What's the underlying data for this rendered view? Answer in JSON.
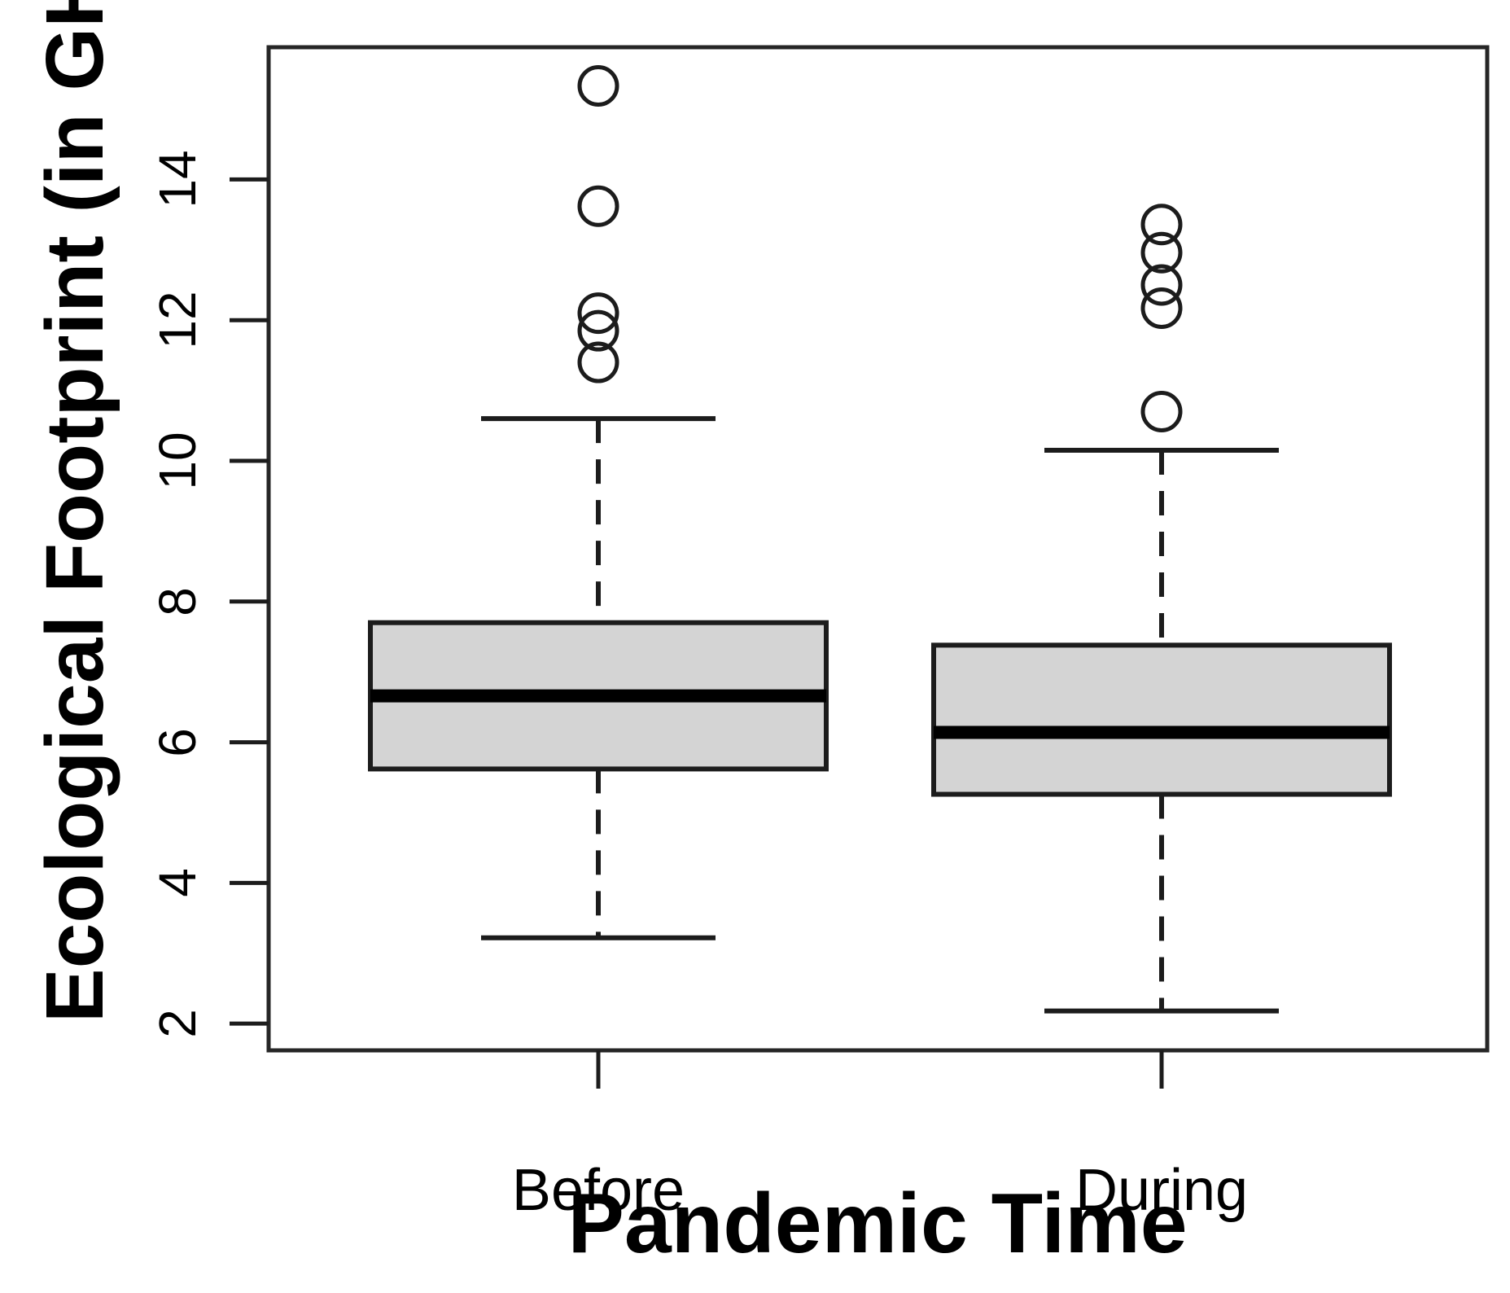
{
  "figure": {
    "background": "#ffffff"
  },
  "chart_data": {
    "type": "boxplot",
    "title": "",
    "xlabel": "Pandemic Time",
    "ylabel": "Ecological Footprint (in GHA)",
    "categories": [
      "Before",
      "During"
    ],
    "ylim": [
      1.62,
      15.88
    ],
    "yticks": [
      2,
      4,
      6,
      8,
      10,
      12,
      14
    ],
    "ytick_labels": [
      "2",
      "4",
      "6",
      "8",
      "10",
      "12",
      "14"
    ],
    "grid": false,
    "legend_position": "none",
    "series": [
      {
        "name": "Before",
        "q1": 5.62,
        "median": 6.66,
        "q3": 7.7,
        "whisker_low": 3.22,
        "whisker_high": 10.6,
        "outliers": [
          11.4,
          11.85,
          12.1,
          13.62,
          15.33
        ]
      },
      {
        "name": "During",
        "q1": 5.26,
        "median": 6.14,
        "q3": 7.38,
        "whisker_low": 2.18,
        "whisker_high": 10.15,
        "outliers": [
          10.7,
          12.17,
          12.5,
          12.96,
          13.36
        ]
      }
    ],
    "colors": {
      "box_fill": "#d4d4d4",
      "line": "#1c1c1c",
      "median": "#000000",
      "frame": "#262626"
    }
  }
}
